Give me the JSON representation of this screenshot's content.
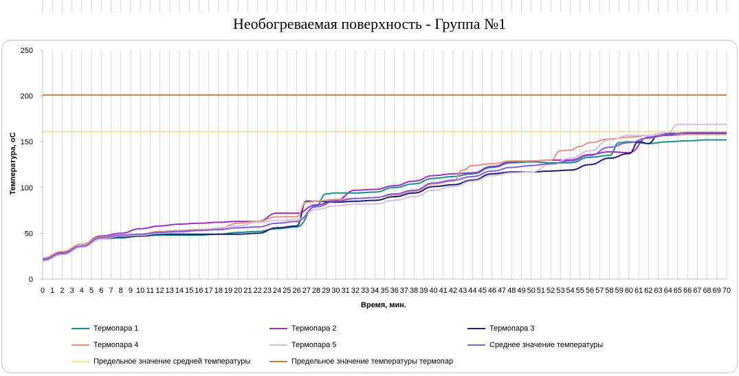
{
  "chart_data": {
    "type": "line",
    "title": "Необогреваемая поверхность - Группа №1",
    "xlabel": "Время, мин.",
    "ylabel": "Температура, оС",
    "ylim": [
      0,
      250
    ],
    "yticks": [
      0,
      50,
      100,
      150,
      200,
      250
    ],
    "xlim": [
      0,
      70
    ],
    "xticks": [
      0,
      1,
      2,
      3,
      4,
      5,
      6,
      7,
      8,
      9,
      10,
      11,
      12,
      13,
      14,
      15,
      16,
      17,
      18,
      19,
      20,
      21,
      22,
      23,
      24,
      25,
      26,
      27,
      28,
      29,
      30,
      31,
      32,
      33,
      34,
      35,
      36,
      37,
      38,
      39,
      40,
      41,
      42,
      43,
      44,
      45,
      46,
      47,
      48,
      49,
      50,
      51,
      52,
      53,
      54,
      55,
      56,
      57,
      58,
      59,
      60,
      61,
      62,
      63,
      64,
      65,
      66,
      67,
      68,
      69,
      70
    ],
    "grid": "vertical",
    "legend_position": "bottom",
    "series": [
      {
        "name": "Термопара 1",
        "color": "#1a9080",
        "x": [
          0,
          2,
          4,
          6,
          8,
          10,
          12,
          14,
          16,
          18,
          20,
          22,
          24,
          26,
          28,
          29,
          30,
          32,
          34,
          36,
          38,
          40,
          42,
          44,
          46,
          48,
          50,
          52,
          54,
          56,
          58,
          59,
          60,
          62,
          64,
          66,
          68,
          70
        ],
        "y": [
          20,
          27,
          35,
          44,
          45,
          47,
          48,
          48,
          48,
          49,
          51,
          52,
          55,
          57,
          80,
          93,
          94,
          94,
          95,
          100,
          104,
          110,
          112,
          115,
          122,
          127,
          128,
          127,
          127,
          133,
          135,
          149,
          150,
          148,
          150,
          151,
          152,
          152
        ]
      },
      {
        "name": "Термопара 2",
        "color": "#9b30c8",
        "x": [
          0,
          2,
          4,
          6,
          8,
          10,
          12,
          14,
          16,
          18,
          20,
          22,
          24,
          26,
          28,
          30,
          32,
          34,
          36,
          38,
          40,
          42,
          44,
          46,
          48,
          50,
          52,
          54,
          56,
          58,
          60,
          62,
          64,
          66,
          68,
          70
        ],
        "y": [
          22,
          29,
          38,
          47,
          50,
          55,
          58,
          60,
          61,
          62,
          63,
          63,
          72,
          72,
          81,
          86,
          97,
          98,
          102,
          107,
          113,
          115,
          116,
          123,
          128,
          129,
          130,
          130,
          136,
          139,
          138,
          155,
          157,
          158,
          158,
          158
        ]
      },
      {
        "name": "Термопара 3",
        "color": "#1c1c70",
        "x": [
          0,
          2,
          4,
          6,
          8,
          10,
          12,
          14,
          16,
          18,
          20,
          22,
          24,
          26,
          27,
          28,
          30,
          32,
          34,
          36,
          38,
          40,
          42,
          44,
          46,
          48,
          50,
          52,
          54,
          56,
          58,
          60,
          61,
          62,
          63,
          64,
          66,
          68,
          70
        ],
        "y": [
          20,
          27,
          35,
          44,
          46,
          47,
          49,
          49,
          49,
          49,
          49,
          50,
          56,
          58,
          85,
          85,
          84,
          85,
          86,
          90,
          94,
          101,
          103,
          108,
          115,
          117,
          117,
          118,
          119,
          125,
          132,
          137,
          150,
          148,
          157,
          159,
          159,
          159,
          159
        ]
      },
      {
        "name": "Термопара 4",
        "color": "#e89080",
        "x": [
          0,
          2,
          4,
          6,
          8,
          10,
          12,
          14,
          16,
          18,
          20,
          22,
          24,
          26,
          27,
          28,
          30,
          32,
          34,
          36,
          38,
          40,
          42,
          43,
          44,
          46,
          48,
          50,
          52,
          53,
          54,
          55,
          56,
          58,
          60,
          62,
          64,
          66,
          68,
          70
        ],
        "y": [
          23,
          30,
          38,
          46,
          48,
          49,
          52,
          53,
          54,
          55,
          61,
          63,
          68,
          68,
          84,
          85,
          87,
          88,
          89,
          92,
          96,
          104,
          107,
          119,
          124,
          126,
          129,
          129,
          130,
          140,
          141,
          145,
          149,
          153,
          155,
          157,
          158,
          158,
          158,
          158
        ]
      },
      {
        "name": "Термопара 5",
        "color": "#d8c0e0",
        "x": [
          0,
          2,
          4,
          6,
          8,
          10,
          12,
          14,
          16,
          18,
          20,
          22,
          24,
          26,
          28,
          30,
          32,
          34,
          36,
          38,
          40,
          42,
          44,
          46,
          48,
          50,
          52,
          54,
          56,
          58,
          60,
          62,
          64,
          65,
          66,
          68,
          70
        ],
        "y": [
          20,
          27,
          35,
          44,
          47,
          48,
          50,
          51,
          53,
          56,
          58,
          62,
          64,
          65,
          76,
          80,
          82,
          82,
          86,
          90,
          97,
          101,
          107,
          113,
          116,
          117,
          125,
          132,
          140,
          152,
          157,
          157,
          160,
          169,
          169,
          169,
          169
        ]
      },
      {
        "name": "Среднее значение температуры",
        "color": "#8060d8",
        "x": [
          0,
          2,
          4,
          6,
          8,
          10,
          12,
          14,
          16,
          18,
          20,
          22,
          24,
          26,
          28,
          30,
          32,
          34,
          36,
          38,
          40,
          42,
          44,
          46,
          48,
          50,
          52,
          54,
          56,
          58,
          60,
          62,
          64,
          66,
          68,
          70
        ],
        "y": [
          21,
          28,
          36,
          45,
          48,
          49,
          51,
          52,
          53,
          54,
          56,
          57,
          61,
          63,
          79,
          85,
          88,
          89,
          93,
          97,
          105,
          108,
          112,
          118,
          122,
          124,
          126,
          129,
          135,
          144,
          149,
          154,
          158,
          160,
          160,
          160
        ]
      },
      {
        "name": "Предельное значение средней температуры",
        "color": "#f0e090",
        "x": [
          0,
          70
        ],
        "y": [
          161,
          161
        ]
      },
      {
        "name": "Предельное значение температуры термопар",
        "color": "#c87838",
        "x": [
          0,
          70
        ],
        "y": [
          201,
          201
        ]
      }
    ]
  }
}
